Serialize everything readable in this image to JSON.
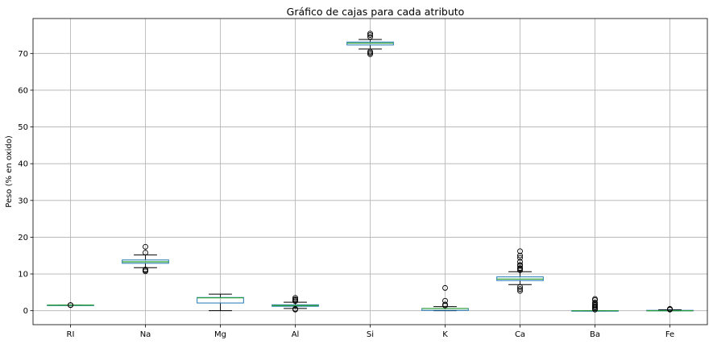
{
  "chart_data": {
    "type": "box",
    "title": "Gráfico de cajas para cada atributo",
    "xlabel": "",
    "ylabel": "Peso (% en oxido)",
    "ylim": [
      -3.8,
      79.5
    ],
    "yticks": [
      0,
      10,
      20,
      30,
      40,
      50,
      60,
      70
    ],
    "grid": true,
    "colors": {
      "box": "#1f77b4",
      "median": "#2ca02c",
      "whisker": "#000000",
      "grid": "#b0b0b0"
    },
    "categories": [
      "RI",
      "Na",
      "Mg",
      "Al",
      "Si",
      "K",
      "Ca",
      "Ba",
      "Fe"
    ],
    "boxes": [
      {
        "name": "RI",
        "whislo": 1.512,
        "q1": 1.517,
        "med": 1.518,
        "q3": 1.519,
        "whishi": 1.523,
        "fliers": [
          1.526,
          1.531,
          1.534
        ]
      },
      {
        "name": "Na",
        "whislo": 11.7,
        "q1": 12.9,
        "med": 13.3,
        "q3": 13.8,
        "whishi": 15.2,
        "fliers": [
          10.7,
          11.0,
          11.2,
          15.8,
          17.4
        ]
      },
      {
        "name": "Mg",
        "whislo": 0.0,
        "q1": 2.1,
        "med": 3.5,
        "q3": 3.6,
        "whishi": 4.5,
        "fliers": []
      },
      {
        "name": "Al",
        "whislo": 0.6,
        "q1": 1.2,
        "med": 1.4,
        "q3": 1.6,
        "whishi": 2.3,
        "fliers": [
          0.3,
          0.5,
          2.6,
          2.9,
          3.1,
          3.5
        ]
      },
      {
        "name": "Si",
        "whislo": 71.2,
        "q1": 72.3,
        "med": 72.8,
        "q3": 73.1,
        "whishi": 73.8,
        "fliers": [
          69.8,
          70.2,
          70.5,
          74.5,
          75.0,
          75.4
        ]
      },
      {
        "name": "K",
        "whislo": 0.0,
        "q1": 0.1,
        "med": 0.6,
        "q3": 0.6,
        "whishi": 1.1,
        "fliers": [
          1.4,
          1.7,
          2.7,
          6.2
        ]
      },
      {
        "name": "Ca",
        "whislo": 7.1,
        "q1": 8.2,
        "med": 8.6,
        "q3": 9.2,
        "whishi": 10.6,
        "fliers": [
          5.4,
          5.9,
          6.5,
          11.0,
          11.4,
          11.6,
          12.2,
          12.5,
          13.3,
          14.4,
          15.0,
          16.2
        ]
      },
      {
        "name": "Ba",
        "whislo": 0.0,
        "q1": 0.0,
        "med": 0.0,
        "q3": 0.0,
        "whishi": 0.0,
        "fliers": [
          0.3,
          0.6,
          0.9,
          1.2,
          1.5,
          1.8,
          2.2,
          2.9,
          3.2
        ]
      },
      {
        "name": "Fe",
        "whislo": 0.0,
        "q1": 0.0,
        "med": 0.0,
        "q3": 0.1,
        "whishi": 0.25,
        "fliers": [
          0.3,
          0.35,
          0.4,
          0.5
        ]
      }
    ]
  }
}
